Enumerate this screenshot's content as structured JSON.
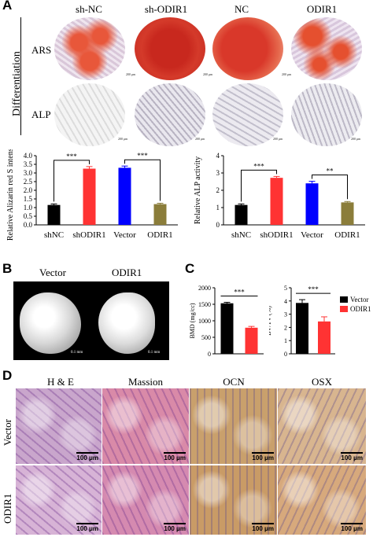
{
  "panelA": {
    "letter": "A",
    "side_label": "Differentiation",
    "row_labels": [
      "ARS",
      "ALP"
    ],
    "col_labels": [
      "sh-NC",
      "sh-ODIR1",
      "NC",
      "ODIR1"
    ],
    "dish_scale": "200 μm"
  },
  "chart_data": [
    {
      "type": "bar",
      "categories": [
        "shNC",
        "shODIR1",
        "Vector",
        "ODIR1"
      ],
      "values": [
        1.15,
        3.25,
        3.3,
        1.2
      ],
      "errors": [
        0.06,
        0.12,
        0.1,
        0.05
      ],
      "colors": [
        "#000000",
        "#ff3333",
        "#0000ff",
        "#8b7d3a"
      ],
      "ylabel": "Relative Alizarin red S intensity",
      "ylim": [
        0,
        4
      ],
      "yticks": [
        "0.0",
        "0.5",
        "1.0",
        "1.5",
        "2.0",
        "2.5",
        "3.0",
        "3.5",
        "4.0"
      ],
      "significance": [
        {
          "from": 0,
          "to": 1,
          "label": "***"
        },
        {
          "from": 2,
          "to": 3,
          "label": "***"
        }
      ]
    },
    {
      "type": "bar",
      "categories": [
        "shNC",
        "shODIR1",
        "Vector",
        "ODIR1"
      ],
      "values": [
        1.15,
        2.72,
        2.4,
        1.3
      ],
      "errors": [
        0.06,
        0.08,
        0.12,
        0.05
      ],
      "colors": [
        "#000000",
        "#ff3333",
        "#0000ff",
        "#8b7d3a"
      ],
      "ylabel": "Relative ALP activity",
      "ylim": [
        0,
        4
      ],
      "yticks": [
        "0",
        "1",
        "2",
        "3",
        "4"
      ],
      "significance": [
        {
          "from": 0,
          "to": 1,
          "label": "***"
        },
        {
          "from": 2,
          "to": 3,
          "label": "**"
        }
      ]
    },
    {
      "type": "bar",
      "categories": [
        "Vector",
        "ODIR1"
      ],
      "values": [
        1530,
        790
      ],
      "errors": [
        30,
        40
      ],
      "colors": [
        "#000000",
        "#ff3333"
      ],
      "ylabel": "BMD (mg/cc)",
      "ylim": [
        0,
        2000
      ],
      "yticks": [
        "0",
        "500",
        "1000",
        "1500",
        "2000"
      ],
      "significance": [
        {
          "from": 0,
          "to": 1,
          "label": "***"
        }
      ]
    },
    {
      "type": "bar",
      "categories": [
        "Vector",
        "ODIR1"
      ],
      "values": [
        3.85,
        2.45
      ],
      "errors": [
        0.25,
        0.35
      ],
      "colors": [
        "#000000",
        "#ff3333"
      ],
      "ylabel": "BV/TV (%)",
      "ylim": [
        0,
        5
      ],
      "yticks": [
        "0",
        "1",
        "2",
        "3",
        "4",
        "5"
      ],
      "significance": [
        {
          "from": 0,
          "to": 1,
          "label": "***"
        }
      ],
      "legend": [
        "Vector",
        "ODIR1"
      ],
      "legend_position": "right"
    }
  ],
  "panelB": {
    "letter": "B",
    "labels": [
      "Vector",
      "ODIR1"
    ],
    "scale": "0.1 mm"
  },
  "panelC": {
    "letter": "C"
  },
  "panelD": {
    "letter": "D",
    "col_labels": [
      "H & E",
      "Massion",
      "OCN",
      "OSX"
    ],
    "row_labels": [
      "Vector",
      "ODIR1"
    ],
    "scale": "100 μm",
    "tile_colors": [
      [
        "#c9a6cc",
        "#d98aa8",
        "#c9a06c",
        "#d8b58f"
      ],
      [
        "#d7b3d6",
        "#d58ab0",
        "#c99b66",
        "#d7a97c"
      ]
    ]
  }
}
